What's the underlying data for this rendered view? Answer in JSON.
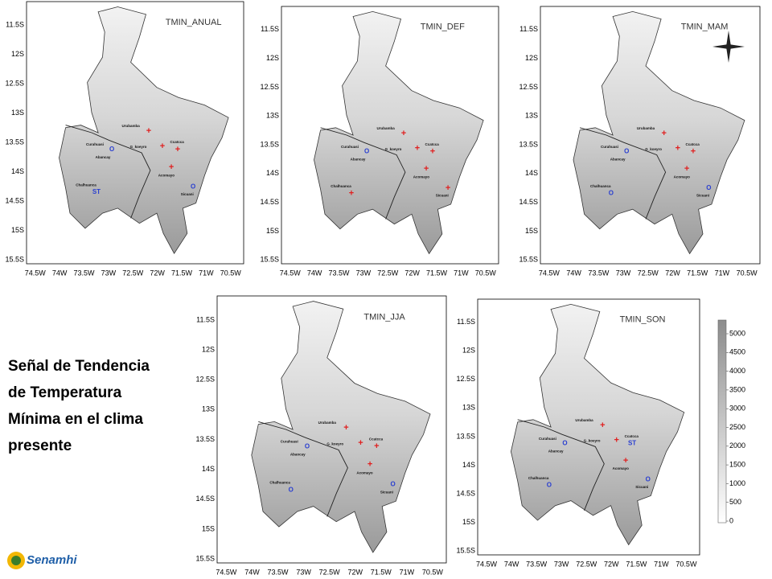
{
  "lat_labels": [
    "11.5S",
    "12S",
    "12.5S",
    "13S",
    "13.5S",
    "14S",
    "14.5S",
    "15S",
    "15.5S"
  ],
  "lon_labels": [
    "74.5W",
    "74W",
    "73.5W",
    "73W",
    "72.5W",
    "72W",
    "71.5W",
    "71W",
    "70.5W"
  ],
  "panels": [
    {
      "title": "TMIN_ANUAL",
      "stations": [
        {
          "name": "Urubamba",
          "symbol": "+"
        },
        {
          "name": "Curahuasi",
          "symbol": "O"
        },
        {
          "name": "G_koeyro",
          "symbol": "+"
        },
        {
          "name": "Ccatcca",
          "symbol": "+"
        },
        {
          "name": "Abancay"
        },
        {
          "name": "Acomayo",
          "symbol": "+"
        },
        {
          "name": "Chalhuanca",
          "symbol": "ST"
        },
        {
          "name": "Sicuani",
          "symbol": "O"
        }
      ]
    },
    {
      "title": "TMIN_DEF",
      "stations": [
        {
          "name": "Urubamba",
          "symbol": "+"
        },
        {
          "name": "Curahuasi",
          "symbol": "O"
        },
        {
          "name": "G_koeyro",
          "symbol": "+"
        },
        {
          "name": "Ccatcca",
          "symbol": "+"
        },
        {
          "name": "Abancay"
        },
        {
          "name": "Acomayo",
          "symbol": "+"
        },
        {
          "name": "Chalhuanca",
          "symbol": "+"
        },
        {
          "name": "Sicuani",
          "symbol": "+"
        }
      ]
    },
    {
      "title": "TMIN_MAM",
      "stations": [
        {
          "name": "Urubamba",
          "symbol": "+"
        },
        {
          "name": "Curahuasi",
          "symbol": "O"
        },
        {
          "name": "G_koeyro",
          "symbol": "+"
        },
        {
          "name": "Ccatcca",
          "symbol": "+"
        },
        {
          "name": "Abancay"
        },
        {
          "name": "Acomayo",
          "symbol": "+"
        },
        {
          "name": "Chalhuanca",
          "symbol": "O"
        },
        {
          "name": "Sicuani",
          "symbol": "O"
        }
      ]
    },
    {
      "title": "TMIN_JJA",
      "stations": [
        {
          "name": "Urubamba",
          "symbol": "+"
        },
        {
          "name": "Curahuasi",
          "symbol": "O"
        },
        {
          "name": "G_koeyro",
          "symbol": "+"
        },
        {
          "name": "Ccatcca",
          "symbol": "+"
        },
        {
          "name": "Abancay"
        },
        {
          "name": "Acomayo",
          "symbol": "+"
        },
        {
          "name": "Chalhuanca",
          "symbol": "O"
        },
        {
          "name": "Sicuani",
          "symbol": "O"
        }
      ]
    },
    {
      "title": "TMIN_SON",
      "stations": [
        {
          "name": "Urubamba",
          "symbol": "+"
        },
        {
          "name": "Curahuasi",
          "symbol": "O"
        },
        {
          "name": "G_koeyro",
          "symbol": "+"
        },
        {
          "name": "Ccatcca",
          "symbol": "ST"
        },
        {
          "name": "Abancay"
        },
        {
          "name": "Acomayo",
          "symbol": "+"
        },
        {
          "name": "Chalhuanca",
          "symbol": "O"
        },
        {
          "name": "Sicuani",
          "symbol": "O"
        }
      ]
    }
  ],
  "colorbar": {
    "labels": [
      5000,
      4500,
      4000,
      3500,
      3000,
      2500,
      2000,
      1500,
      1000,
      500,
      0
    ]
  },
  "caption": [
    "Señal de Tendencia",
    "de Temperatura",
    "Mínima en el clima",
    "presente"
  ],
  "logo": "Senamhi"
}
